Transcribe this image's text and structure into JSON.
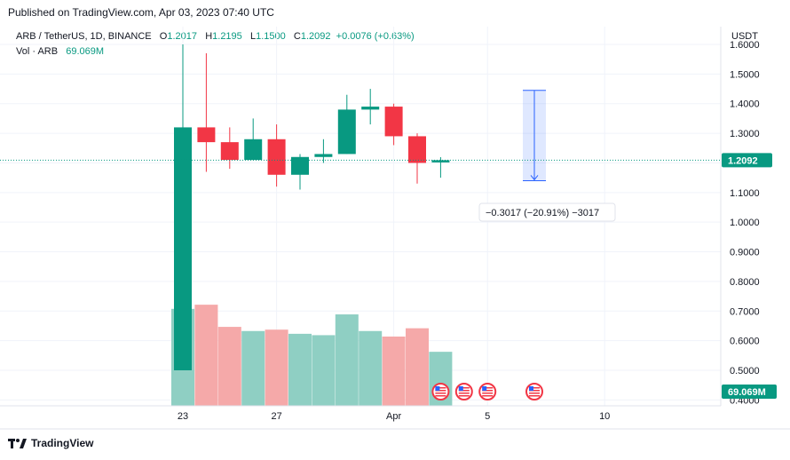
{
  "header": {
    "published": "Published on TradingView.com, Apr 03, 2023 07:40 UTC"
  },
  "legend": {
    "symbol": "ARB / TetherUS, 1D, BINANCE",
    "open_label": "O",
    "open": "1.2017",
    "high_label": "H",
    "high": "1.2195",
    "low_label": "L",
    "low": "1.1500",
    "close_label": "C",
    "close": "1.2092",
    "change": "+0.0076 (+0.63%)",
    "vol_label": "Vol · ARB",
    "vol_value": "69.069M"
  },
  "axis": {
    "currency": "USDT",
    "last_price": "1.2092",
    "last_volume": "69.069M"
  },
  "measure": {
    "label": "−0.3017 (−20.91%) −3017"
  },
  "footer": {
    "brand": "TradingView"
  },
  "colors": {
    "up": "#089981",
    "down": "#f23645",
    "vol_up": "#8fcfc3",
    "vol_down": "#f5a9a9",
    "measure": "#2962ff"
  },
  "chart_data": {
    "type": "candlestick",
    "ylim": [
      0.38,
      1.66
    ],
    "yticks": [
      "1.6000",
      "1.5000",
      "1.4000",
      "1.3000",
      "1.2000",
      "1.1000",
      "1.0000",
      "0.9000",
      "0.8000",
      "0.7000",
      "0.6000",
      "0.5000",
      "0.4000"
    ],
    "xticks": [
      {
        "label": "23",
        "index": 0
      },
      {
        "label": "27",
        "index": 4
      },
      {
        "label": "Apr",
        "index": 9
      },
      {
        "label": "5",
        "index": 13
      },
      {
        "label": "10",
        "index": 18
      }
    ],
    "candles": [
      {
        "date": "Mar 23",
        "o": 0.5,
        "h": 1.6,
        "l": 0.5,
        "c": 1.32,
        "v": 0.7
      },
      {
        "date": "Mar 24",
        "o": 1.32,
        "h": 1.57,
        "l": 1.17,
        "c": 1.27,
        "v": 0.73
      },
      {
        "date": "Mar 25",
        "o": 1.27,
        "h": 1.32,
        "l": 1.18,
        "c": 1.21,
        "v": 0.57
      },
      {
        "date": "Mar 26",
        "o": 1.21,
        "h": 1.35,
        "l": 1.21,
        "c": 1.28,
        "v": 0.54
      },
      {
        "date": "Mar 27",
        "o": 1.28,
        "h": 1.33,
        "l": 1.12,
        "c": 1.16,
        "v": 0.55
      },
      {
        "date": "Mar 28",
        "o": 1.16,
        "h": 1.23,
        "l": 1.11,
        "c": 1.22,
        "v": 0.52
      },
      {
        "date": "Mar 29",
        "o": 1.22,
        "h": 1.28,
        "l": 1.2,
        "c": 1.23,
        "v": 0.51
      },
      {
        "date": "Mar 30",
        "o": 1.23,
        "h": 1.43,
        "l": 1.23,
        "c": 1.38,
        "v": 0.66
      },
      {
        "date": "Mar 31",
        "o": 1.38,
        "h": 1.45,
        "l": 1.33,
        "c": 1.39,
        "v": 0.54
      },
      {
        "date": "Apr 01",
        "o": 1.39,
        "h": 1.4,
        "l": 1.26,
        "c": 1.29,
        "v": 0.5
      },
      {
        "date": "Apr 02",
        "o": 1.29,
        "h": 1.3,
        "l": 1.13,
        "c": 1.2,
        "v": 0.56
      },
      {
        "date": "Apr 03",
        "o": 1.2017,
        "h": 1.2195,
        "l": 1.15,
        "c": 1.2092,
        "v": 0.39
      }
    ],
    "events_at": [
      11,
      12,
      13,
      15
    ],
    "measure_range": {
      "from_index": 15,
      "top": 1.445,
      "bottom": 1.14
    },
    "last_price": 1.2092
  }
}
